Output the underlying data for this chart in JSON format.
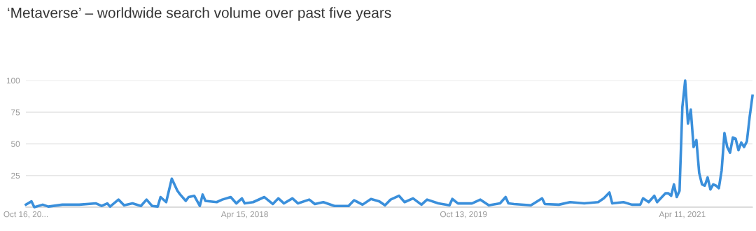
{
  "chart_data": {
    "type": "line",
    "title": "‘Metaverse’ – worldwide search volume over past five years",
    "xlim": [
      "2016-10-16",
      "2021-10-03"
    ],
    "xticks": [
      {
        "value": "2016-10-16",
        "label": "Oct 16, 20..."
      },
      {
        "value": "2018-04-15",
        "label": "Apr 15, 2018"
      },
      {
        "value": "2019-10-13",
        "label": "Oct 13, 2019"
      },
      {
        "value": "2021-04-11",
        "label": "Apr 11, 2021"
      }
    ],
    "ylim": [
      0,
      100
    ],
    "yticks": [
      {
        "value": 0,
        "label": null
      },
      25,
      50,
      75,
      100
    ],
    "grid": "y",
    "series": [
      {
        "color": "#3a8fdb",
        "x": [
          "2016-10-16",
          "2016-10-30",
          "2016-11-06",
          "2016-11-27",
          "2016-12-11",
          "2017-01-15",
          "2017-02-26",
          "2017-04-09",
          "2017-04-23",
          "2017-05-07",
          "2017-05-14",
          "2017-06-04",
          "2017-06-18",
          "2017-07-09",
          "2017-07-30",
          "2017-08-13",
          "2017-08-27",
          "2017-09-10",
          "2017-09-17",
          "2017-10-01",
          "2017-10-15",
          "2017-10-29",
          "2017-11-05",
          "2017-11-19",
          "2017-11-26",
          "2017-12-10",
          "2017-12-24",
          "2017-12-31",
          "2018-01-07",
          "2018-02-04",
          "2018-02-18",
          "2018-03-11",
          "2018-03-25",
          "2018-04-08",
          "2018-04-15",
          "2018-05-06",
          "2018-06-03",
          "2018-06-24",
          "2018-07-08",
          "2018-07-22",
          "2018-08-12",
          "2018-08-26",
          "2018-09-23",
          "2018-10-07",
          "2018-10-28",
          "2018-11-25",
          "2018-12-30",
          "2019-01-13",
          "2019-02-03",
          "2019-02-24",
          "2019-03-17",
          "2019-03-31",
          "2019-04-14",
          "2019-05-05",
          "2019-05-19",
          "2019-06-09",
          "2019-06-30",
          "2019-07-14",
          "2019-08-11",
          "2019-09-08",
          "2019-09-15",
          "2019-09-29",
          "2019-11-03",
          "2019-11-24",
          "2019-12-15",
          "2020-01-12",
          "2020-01-26",
          "2020-02-02",
          "2020-02-16",
          "2020-03-29",
          "2020-04-26",
          "2020-05-03",
          "2020-06-07",
          "2020-07-05",
          "2020-08-09",
          "2020-09-13",
          "2020-09-27",
          "2020-10-11",
          "2020-10-18",
          "2020-11-15",
          "2020-12-06",
          "2020-12-27",
          "2021-01-03",
          "2021-01-17",
          "2021-01-31",
          "2021-02-07",
          "2021-02-28",
          "2021-03-07",
          "2021-03-14",
          "2021-03-21",
          "2021-03-28",
          "2021-04-04",
          "2021-04-11",
          "2021-04-18",
          "2021-04-25",
          "2021-05-02",
          "2021-05-09",
          "2021-05-16",
          "2021-05-23",
          "2021-05-30",
          "2021-06-06",
          "2021-06-13",
          "2021-06-20",
          "2021-06-27",
          "2021-07-04",
          "2021-07-11",
          "2021-07-18",
          "2021-07-25",
          "2021-08-01",
          "2021-08-08",
          "2021-08-15",
          "2021-08-22",
          "2021-08-29",
          "2021-09-05",
          "2021-09-12",
          "2021-09-19",
          "2021-09-26",
          "2021-10-03"
        ],
        "values": [
          2,
          4.6,
          0,
          2,
          0.5,
          2,
          2,
          3,
          1,
          3,
          0.5,
          6,
          1.5,
          3,
          1,
          6,
          1,
          0.5,
          8,
          4,
          22.5,
          13,
          10,
          5,
          8,
          9,
          1,
          10,
          5,
          4,
          6,
          8,
          3,
          7,
          3,
          4,
          8,
          2.5,
          7,
          3,
          7,
          3,
          6,
          2.5,
          4,
          1,
          1,
          5.5,
          2,
          6.5,
          4.6,
          1.5,
          6,
          9,
          4,
          7,
          2,
          6,
          3,
          1.5,
          6.5,
          3,
          3,
          6,
          1.5,
          3,
          8,
          3,
          2.5,
          1.5,
          7,
          2.5,
          2,
          4,
          3,
          4,
          7,
          11.6,
          3,
          4,
          2,
          2,
          7,
          4,
          9,
          4,
          11,
          11,
          9,
          18,
          8,
          13,
          79,
          100,
          66,
          77,
          47.5,
          53,
          27,
          18,
          17,
          23.5,
          14,
          18,
          17,
          15,
          29,
          58.5,
          47.5,
          43,
          55,
          54,
          45,
          51,
          47.5,
          52,
          71.5,
          88
        ]
      }
    ]
  }
}
